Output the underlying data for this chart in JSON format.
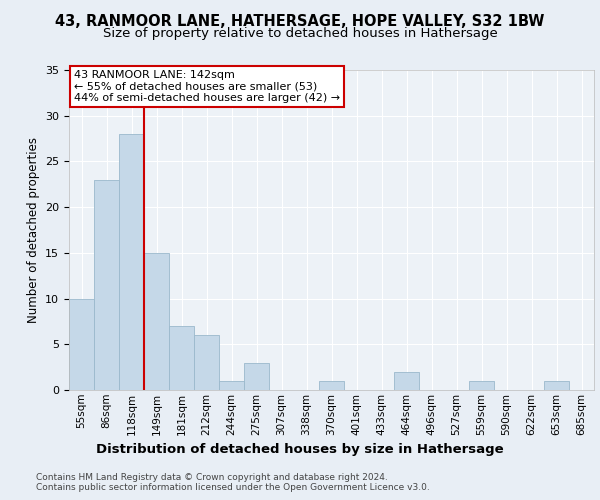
{
  "title1": "43, RANMOOR LANE, HATHERSAGE, HOPE VALLEY, S32 1BW",
  "title2": "Size of property relative to detached houses in Hathersage",
  "xlabel": "Distribution of detached houses by size in Hathersage",
  "ylabel": "Number of detached properties",
  "bin_labels": [
    "55sqm",
    "86sqm",
    "118sqm",
    "149sqm",
    "181sqm",
    "212sqm",
    "244sqm",
    "275sqm",
    "307sqm",
    "338sqm",
    "370sqm",
    "401sqm",
    "433sqm",
    "464sqm",
    "496sqm",
    "527sqm",
    "559sqm",
    "590sqm",
    "622sqm",
    "653sqm",
    "685sqm"
  ],
  "bar_values": [
    10,
    23,
    28,
    15,
    7,
    6,
    1,
    3,
    0,
    0,
    1,
    0,
    0,
    2,
    0,
    0,
    1,
    0,
    0,
    1,
    0
  ],
  "bar_color": "#c5d8e8",
  "bar_edge_color": "#9ab8cc",
  "vline_color": "#cc0000",
  "annotation_text": "43 RANMOOR LANE: 142sqm\n← 55% of detached houses are smaller (53)\n44% of semi-detached houses are larger (42) →",
  "annotation_box_color": "white",
  "annotation_box_edge": "#cc0000",
  "ylim": [
    0,
    35
  ],
  "yticks": [
    0,
    5,
    10,
    15,
    20,
    25,
    30,
    35
  ],
  "bg_color": "#e8eef5",
  "plot_bg_color": "#edf2f7",
  "footnote": "Contains HM Land Registry data © Crown copyright and database right 2024.\nContains public sector information licensed under the Open Government Licence v3.0.",
  "title_fontsize": 10.5,
  "subtitle_fontsize": 9.5,
  "xlabel_fontsize": 9.5,
  "ylabel_fontsize": 8.5,
  "tick_fontsize": 7.5,
  "footnote_fontsize": 6.5,
  "annot_fontsize": 8
}
